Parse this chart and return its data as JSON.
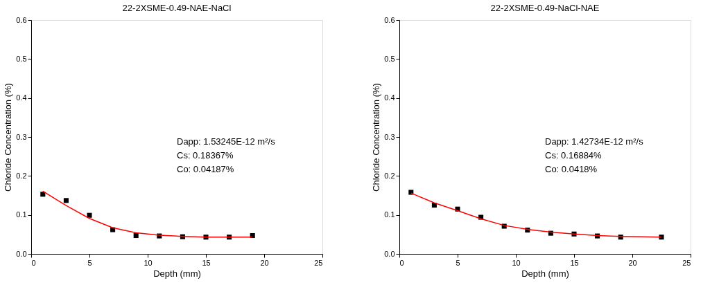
{
  "chart_data": [
    {
      "type": "scatter",
      "title": "22-2XSME-0.49-NAE-NaCl",
      "xlabel": "Depth (mm)",
      "ylabel": "Chloride Concentration (%)",
      "xlim": [
        0,
        25
      ],
      "xticks": [
        0,
        5,
        10,
        15,
        20,
        25
      ],
      "ylim": [
        0,
        0.6
      ],
      "yticks": [
        {
          "value": 0,
          "label": "0.0"
        },
        0.1,
        0.2,
        0.3,
        0.4,
        0.5,
        0.6
      ],
      "grid": false,
      "legend": false,
      "marker": "square",
      "series": [
        {
          "color": "#000000",
          "x": [
            1,
            3,
            5,
            7,
            9,
            11,
            13,
            15,
            17,
            19
          ],
          "values": [
            0.153,
            0.137,
            0.099,
            0.062,
            0.047,
            0.046,
            0.044,
            0.043,
            0.043,
            0.047
          ]
        },
        {
          "type": "line",
          "color": "#ff0000",
          "marker": "none",
          "line_style": "solid",
          "x": [
            1,
            3,
            5,
            7,
            9,
            11,
            13,
            15,
            17,
            19
          ],
          "values": [
            0.161,
            0.124,
            0.091,
            0.067,
            0.054,
            0.048,
            0.045,
            0.043,
            0.043,
            0.043
          ]
        }
      ],
      "annotations": [
        "Dapp: 1.53245E-12 m²/s",
        "Cs: 0.18367%",
        "Co: 0.04187%"
      ]
    },
    {
      "type": "scatter",
      "title": "22-2XSME-0.49-NaCl-NAE",
      "xlabel": "Depth (mm)",
      "ylabel": "Chloride Concentration (%)",
      "xlim": [
        0,
        25
      ],
      "xticks": [
        0,
        5,
        10,
        15,
        20,
        25
      ],
      "ylim": [
        0,
        0.6
      ],
      "yticks": [
        {
          "value": 0,
          "label": "0.0"
        },
        0.1,
        0.2,
        0.3,
        0.4,
        0.5,
        0.6
      ],
      "grid": false,
      "legend": false,
      "marker": "square",
      "series": [
        {
          "color": "#000000",
          "x": [
            1,
            3,
            5,
            7,
            9,
            11,
            13,
            15,
            17,
            19,
            22.5
          ],
          "values": [
            0.158,
            0.125,
            0.115,
            0.094,
            0.071,
            0.061,
            0.053,
            0.051,
            0.046,
            0.043,
            0.043
          ]
        },
        {
          "type": "line",
          "color": "#ff0000",
          "marker": "none",
          "line_style": "solid",
          "x": [
            1,
            3,
            5,
            7,
            9,
            11,
            13,
            15,
            17,
            19,
            22.5
          ],
          "values": [
            0.156,
            0.131,
            0.111,
            0.09,
            0.073,
            0.063,
            0.056,
            0.051,
            0.047,
            0.045,
            0.043
          ]
        }
      ],
      "annotations": [
        "Dapp: 1.42734E-12 m²/s",
        "Cs: 0.16884%",
        "Co: 0.0418%"
      ]
    }
  ]
}
